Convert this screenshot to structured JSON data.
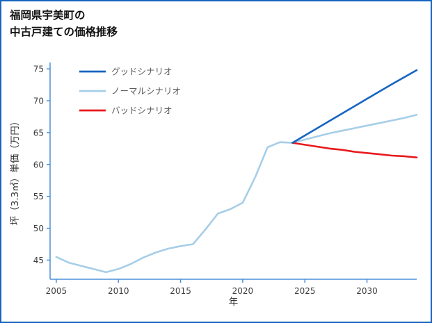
{
  "header": {
    "title_line1": "福岡県宇美町の",
    "title_line2": "中古戸建ての価格推移"
  },
  "colors": {
    "border": "#1565c0",
    "axis": "#4a90d9",
    "tick_label": "#3d3d3d",
    "axis_label": "#333333",
    "legend_text": "#595959",
    "background": "#ffffff"
  },
  "chart_data": {
    "type": "line",
    "title": "福岡県宇美町の中古戸建ての価格推移",
    "xlabel": "年",
    "ylabel": "坪（3.3㎡）単価（万円）",
    "xlim": [
      2004.5,
      2034
    ],
    "ylim": [
      42,
      76
    ],
    "xticks": [
      2005,
      2010,
      2015,
      2020,
      2025,
      2030
    ],
    "yticks": [
      45,
      50,
      55,
      60,
      65,
      70,
      75
    ],
    "grid": false,
    "legend_position": "top-left",
    "series": [
      {
        "key": "good-scenario",
        "name": "グッドシナリオ",
        "color": "#1565c0",
        "x": [
          2024,
          2026,
          2028,
          2030,
          2032,
          2034
        ],
        "values": [
          63.4,
          65.7,
          68.0,
          70.3,
          72.6,
          74.8
        ]
      },
      {
        "key": "normal-scenario",
        "name": "ノーマルシナリオ",
        "color": "#a6cee8",
        "x": [
          2005,
          2006,
          2007,
          2008,
          2009,
          2010,
          2011,
          2012,
          2013,
          2014,
          2015,
          2016,
          2017,
          2018,
          2019,
          2020,
          2021,
          2022,
          2023,
          2024,
          2025,
          2026,
          2027,
          2028,
          2029,
          2030,
          2031,
          2032,
          2033,
          2034
        ],
        "values": [
          45.5,
          44.6,
          44.1,
          43.6,
          43.1,
          43.6,
          44.4,
          45.4,
          46.2,
          46.8,
          47.2,
          47.5,
          49.8,
          52.3,
          53.0,
          54.0,
          58.0,
          62.7,
          63.5,
          63.4,
          63.9,
          64.4,
          64.9,
          65.3,
          65.7,
          66.1,
          66.5,
          66.9,
          67.3,
          67.8
        ]
      },
      {
        "key": "bad-scenario",
        "name": "バッドシナリオ",
        "color": "#e8191c",
        "x": [
          2024,
          2025,
          2026,
          2027,
          2028,
          2029,
          2030,
          2031,
          2032,
          2033,
          2034
        ],
        "values": [
          63.4,
          63.1,
          62.8,
          62.5,
          62.3,
          62.0,
          61.8,
          61.6,
          61.4,
          61.3,
          61.1
        ]
      }
    ]
  }
}
